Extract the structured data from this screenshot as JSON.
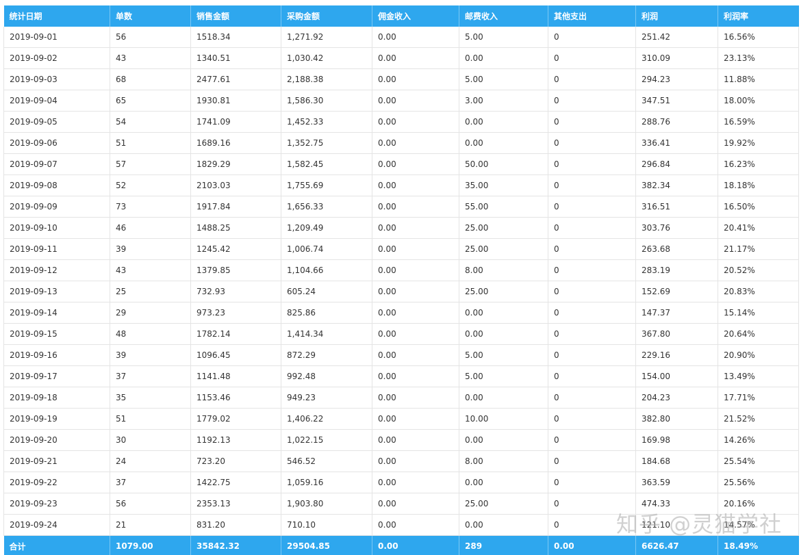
{
  "table": {
    "columns": [
      "统计日期",
      "单数",
      "销售金额",
      "采购金额",
      "佣金收入",
      "邮费收入",
      "其他支出",
      "利润",
      "利润率"
    ],
    "rows": [
      [
        "2019-09-01",
        "56",
        "1518.34",
        "1,271.92",
        "0.00",
        "5.00",
        "0",
        "251.42",
        "16.56%"
      ],
      [
        "2019-09-02",
        "43",
        "1340.51",
        "1,030.42",
        "0.00",
        "0.00",
        "0",
        "310.09",
        "23.13%"
      ],
      [
        "2019-09-03",
        "68",
        "2477.61",
        "2,188.38",
        "0.00",
        "5.00",
        "0",
        "294.23",
        "11.88%"
      ],
      [
        "2019-09-04",
        "65",
        "1930.81",
        "1,586.30",
        "0.00",
        "3.00",
        "0",
        "347.51",
        "18.00%"
      ],
      [
        "2019-09-05",
        "54",
        "1741.09",
        "1,452.33",
        "0.00",
        "0.00",
        "0",
        "288.76",
        "16.59%"
      ],
      [
        "2019-09-06",
        "51",
        "1689.16",
        "1,352.75",
        "0.00",
        "0.00",
        "0",
        "336.41",
        "19.92%"
      ],
      [
        "2019-09-07",
        "57",
        "1829.29",
        "1,582.45",
        "0.00",
        "50.00",
        "0",
        "296.84",
        "16.23%"
      ],
      [
        "2019-09-08",
        "52",
        "2103.03",
        "1,755.69",
        "0.00",
        "35.00",
        "0",
        "382.34",
        "18.18%"
      ],
      [
        "2019-09-09",
        "73",
        "1917.84",
        "1,656.33",
        "0.00",
        "55.00",
        "0",
        "316.51",
        "16.50%"
      ],
      [
        "2019-09-10",
        "46",
        "1488.25",
        "1,209.49",
        "0.00",
        "25.00",
        "0",
        "303.76",
        "20.41%"
      ],
      [
        "2019-09-11",
        "39",
        "1245.42",
        "1,006.74",
        "0.00",
        "25.00",
        "0",
        "263.68",
        "21.17%"
      ],
      [
        "2019-09-12",
        "43",
        "1379.85",
        "1,104.66",
        "0.00",
        "8.00",
        "0",
        "283.19",
        "20.52%"
      ],
      [
        "2019-09-13",
        "25",
        "732.93",
        "605.24",
        "0.00",
        "25.00",
        "0",
        "152.69",
        "20.83%"
      ],
      [
        "2019-09-14",
        "29",
        "973.23",
        "825.86",
        "0.00",
        "0.00",
        "0",
        "147.37",
        "15.14%"
      ],
      [
        "2019-09-15",
        "48",
        "1782.14",
        "1,414.34",
        "0.00",
        "0.00",
        "0",
        "367.80",
        "20.64%"
      ],
      [
        "2019-09-16",
        "39",
        "1096.45",
        "872.29",
        "0.00",
        "5.00",
        "0",
        "229.16",
        "20.90%"
      ],
      [
        "2019-09-17",
        "37",
        "1141.48",
        "992.48",
        "0.00",
        "5.00",
        "0",
        "154.00",
        "13.49%"
      ],
      [
        "2019-09-18",
        "35",
        "1153.46",
        "949.23",
        "0.00",
        "0.00",
        "0",
        "204.23",
        "17.71%"
      ],
      [
        "2019-09-19",
        "51",
        "1779.02",
        "1,406.22",
        "0.00",
        "10.00",
        "0",
        "382.80",
        "21.52%"
      ],
      [
        "2019-09-20",
        "30",
        "1192.13",
        "1,022.15",
        "0.00",
        "0.00",
        "0",
        "169.98",
        "14.26%"
      ],
      [
        "2019-09-21",
        "24",
        "723.20",
        "546.52",
        "0.00",
        "8.00",
        "0",
        "184.68",
        "25.54%"
      ],
      [
        "2019-09-22",
        "37",
        "1422.75",
        "1,059.16",
        "0.00",
        "0.00",
        "0",
        "363.59",
        "25.56%"
      ],
      [
        "2019-09-23",
        "56",
        "2353.13",
        "1,903.80",
        "0.00",
        "25.00",
        "0",
        "474.33",
        "20.16%"
      ],
      [
        "2019-09-24",
        "21",
        "831.20",
        "710.10",
        "0.00",
        "0.00",
        "0",
        "121.10",
        "14.57%"
      ]
    ],
    "totals": [
      "合计",
      "1079.00",
      "35842.32",
      "29504.85",
      "0.00",
      "289",
      "0.00",
      "6626.47",
      "18.49%"
    ]
  },
  "watermark": {
    "text": "知乎 @灵猫学社"
  },
  "colors": {
    "header_bg": "#2ea7ee",
    "header_text": "#ffffff",
    "grid_line": "#e4e4e4"
  }
}
